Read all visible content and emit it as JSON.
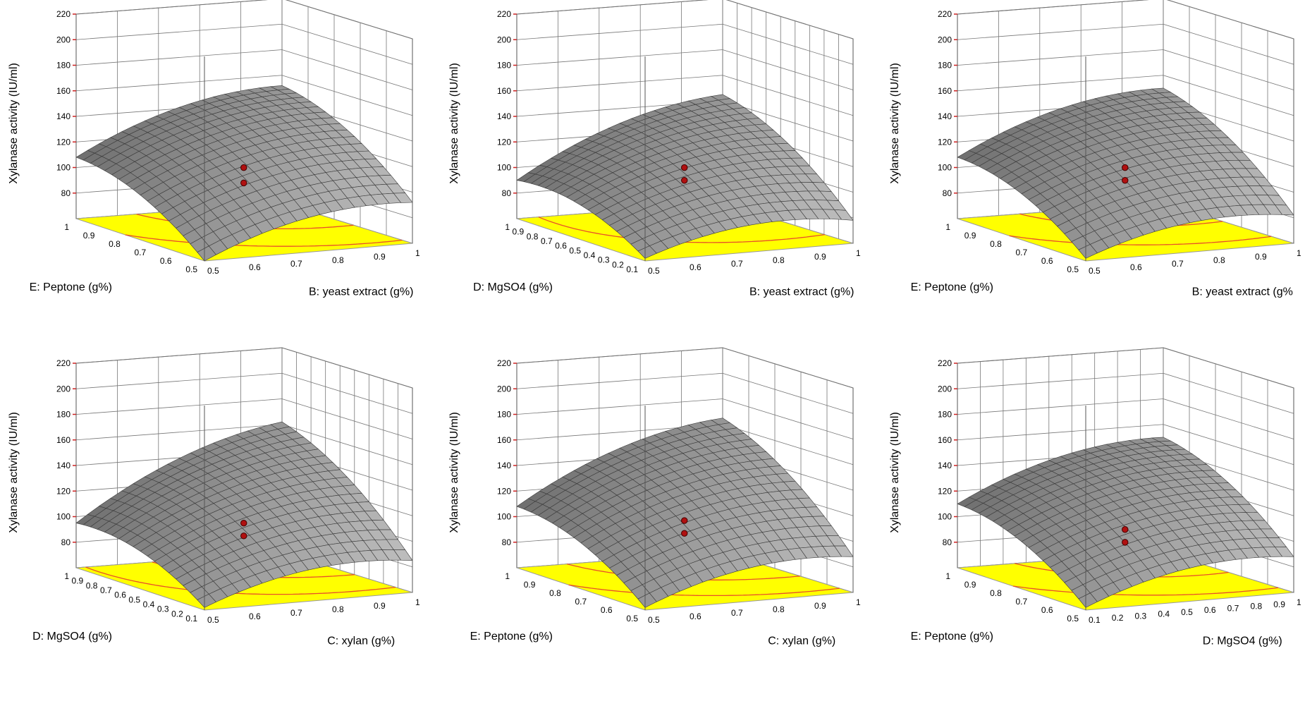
{
  "colors": {
    "surface_fill": "#9e9e9e",
    "surface_grid": "#3a3a3a",
    "floor_fill": "#ffff00",
    "contour": "#e8502a",
    "design_point": "#b01010",
    "box_lines": "#555555",
    "z_tick_marks": "#cc2222"
  },
  "chart_data": [
    {
      "type": "surface3d",
      "zlabel": "Xylanase activity (IU/ml)",
      "xlabel": "B: yeast extract (g%)",
      "ylabel": "E: Peptone (g%)",
      "zticks": [
        "80",
        "100",
        "120",
        "140",
        "160",
        "180",
        "200",
        "220"
      ],
      "xticks": [
        "0.5",
        "0.6",
        "0.7",
        "0.8",
        "0.9",
        "1"
      ],
      "yticks": [
        "0.5",
        "0.6",
        "0.7",
        "0.8",
        "0.9",
        "1"
      ],
      "z_range": [
        60,
        220
      ],
      "surface_corners": {
        "near": 60,
        "right": 92,
        "left": 108,
        "back": 152
      },
      "design_points_z": [
        110,
        98
      ]
    },
    {
      "type": "surface3d",
      "zlabel": "Xylanase activity (IU/ml)",
      "xlabel": "B: yeast extract (g%)",
      "ylabel": "D: MgSO4 (g%)",
      "zticks": [
        "80",
        "100",
        "120",
        "140",
        "160",
        "180",
        "200",
        "220"
      ],
      "xticks": [
        "0.5",
        "0.6",
        "0.7",
        "0.8",
        "0.9",
        "1"
      ],
      "yticks": [
        "0.1",
        "0.2",
        "0.3",
        "0.4",
        "0.5",
        "0.6",
        "0.7",
        "0.8",
        "0.9",
        "1"
      ],
      "z_range": [
        60,
        220
      ],
      "surface_corners": {
        "near": 62,
        "right": 78,
        "left": 90,
        "back": 145
      },
      "design_points_z": [
        110,
        100
      ]
    },
    {
      "type": "surface3d",
      "zlabel": "Xylanase activity (IU/ml)",
      "xlabel": "B: yeast extract (g%",
      "ylabel": "E: Peptone (g%)",
      "zticks": [
        "80",
        "100",
        "120",
        "140",
        "160",
        "180",
        "200",
        "220"
      ],
      "xticks": [
        "0.5",
        "0.6",
        "0.7",
        "0.8",
        "0.9",
        "1"
      ],
      "yticks": [
        "0.5",
        "0.6",
        "0.7",
        "0.8",
        "0.9",
        "1"
      ],
      "z_range": [
        60,
        220
      ],
      "surface_corners": {
        "near": 62,
        "right": 82,
        "left": 108,
        "back": 150
      },
      "design_points_z": [
        110,
        100
      ]
    },
    {
      "type": "surface3d",
      "zlabel": "Xylanase activity (IU/ml)",
      "xlabel": "C: xylan (g%)",
      "ylabel": "D: MgSO4 (g%)",
      "zticks": [
        "80",
        "100",
        "120",
        "140",
        "160",
        "180",
        "200",
        "220"
      ],
      "xticks": [
        "0.5",
        "0.6",
        "0.7",
        "0.8",
        "0.9",
        "1"
      ],
      "yticks": [
        "0.1",
        "0.2",
        "0.3",
        "0.4",
        "0.5",
        "0.6",
        "0.7",
        "0.8",
        "0.9",
        "1"
      ],
      "z_range": [
        60,
        220
      ],
      "surface_corners": {
        "near": 62,
        "right": 85,
        "left": 95,
        "back": 162
      },
      "design_points_z": [
        105,
        95
      ]
    },
    {
      "type": "surface3d",
      "zlabel": "Xylanase activity (IU/ml)",
      "xlabel": "C: xylan (g%)",
      "ylabel": "E: Peptone (g%)",
      "zticks": [
        "80",
        "100",
        "120",
        "140",
        "160",
        "180",
        "200",
        "220"
      ],
      "xticks": [
        "0.5",
        "0.6",
        "0.7",
        "0.8",
        "0.9",
        "1"
      ],
      "yticks": [
        "0.5",
        "0.6",
        "0.7",
        "0.8",
        "0.9",
        "1"
      ],
      "z_range": [
        60,
        220
      ],
      "surface_corners": {
        "near": 62,
        "right": 88,
        "left": 108,
        "back": 165
      },
      "design_points_z": [
        107,
        97
      ]
    },
    {
      "type": "surface3d",
      "zlabel": "Xylanase activity (IU/ml)",
      "xlabel": "D: MgSO4 (g%)",
      "ylabel": "E: Peptone (g%)",
      "zticks": [
        "80",
        "100",
        "120",
        "140",
        "160",
        "180",
        "200",
        "220"
      ],
      "xticks": [
        "0.1",
        "0.2",
        "0.3",
        "0.4",
        "0.5",
        "0.6",
        "0.7",
        "0.8",
        "0.9",
        "1"
      ],
      "yticks": [
        "0.5",
        "0.6",
        "0.7",
        "0.8",
        "0.9",
        "1"
      ],
      "z_range": [
        60,
        220
      ],
      "surface_corners": {
        "near": 62,
        "right": 88,
        "left": 110,
        "back": 150
      },
      "design_points_z": [
        100,
        90
      ]
    }
  ]
}
